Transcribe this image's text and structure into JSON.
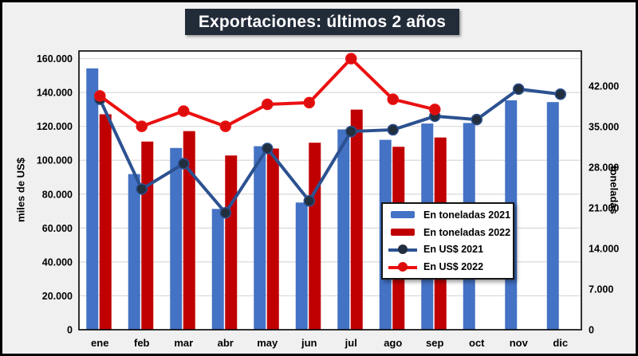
{
  "chart_data": {
    "type": "combo-bar-line",
    "title": "Exportaciones: últimos 2 años",
    "title_bg": "#222b38",
    "title_color": "#ffffff",
    "canvas_bg": "#f0f0f0",
    "plot_bg": "#ffffff",
    "grid_color": "#d9d9d9",
    "plot_border_color": "#000000",
    "categories": [
      "ene",
      "feb",
      "mar",
      "abr",
      "may",
      "jun",
      "jul",
      "ago",
      "sep",
      "oct",
      "nov",
      "dic"
    ],
    "left_axis": {
      "label": "miles de US$",
      "min": 0,
      "max": 164500,
      "ticks": [
        {
          "value": 0,
          "label": "0"
        },
        {
          "value": 20000,
          "label": "20.000"
        },
        {
          "value": 40000,
          "label": "40.000"
        },
        {
          "value": 60000,
          "label": "60.000"
        },
        {
          "value": 80000,
          "label": "80.000"
        },
        {
          "value": 100000,
          "label": "100.000"
        },
        {
          "value": 120000,
          "label": "120.000"
        },
        {
          "value": 140000,
          "label": "140.000"
        },
        {
          "value": 160000,
          "label": "160.000"
        }
      ]
    },
    "right_axis": {
      "label": "toneladas",
      "min": 0,
      "max": 48000,
      "ticks": [
        {
          "value": 0,
          "label": "0"
        },
        {
          "value": 7000,
          "label": "7.000"
        },
        {
          "value": 14000,
          "label": "14.000"
        },
        {
          "value": 21000,
          "label": "21.000"
        },
        {
          "value": 28000,
          "label": "28.000"
        },
        {
          "value": 35000,
          "label": "35.000"
        },
        {
          "value": 42000,
          "label": "42.000"
        }
      ]
    },
    "series": [
      {
        "name": "En toneladas 2021",
        "type": "bar",
        "axis": "right",
        "color": "#4472C4",
        "values": [
          45000,
          26800,
          31300,
          20800,
          31600,
          21900,
          34500,
          32700,
          35500,
          35600,
          39500,
          39200
        ]
      },
      {
        "name": "En toneladas 2022",
        "type": "bar",
        "axis": "right",
        "color": "#C00000",
        "values": [
          37100,
          32400,
          34200,
          30000,
          31200,
          32200,
          37900,
          31500,
          33100,
          null,
          null,
          null
        ]
      },
      {
        "name": "En US$ 2021",
        "type": "line",
        "axis": "left",
        "color": "#2C5191",
        "marker_color": "#222F3F",
        "values": [
          136000,
          83000,
          98000,
          69000,
          107000,
          76000,
          117000,
          118000,
          126000,
          124000,
          142000,
          139000
        ]
      },
      {
        "name": "En US$ 2022",
        "type": "line",
        "axis": "left",
        "color": "#EB1010",
        "marker_color": "#DD0D0D",
        "values": [
          138000,
          120000,
          129000,
          120000,
          133000,
          134000,
          160000,
          136000,
          130000,
          null,
          null,
          null
        ]
      }
    ],
    "legend_position": "inside-right"
  }
}
